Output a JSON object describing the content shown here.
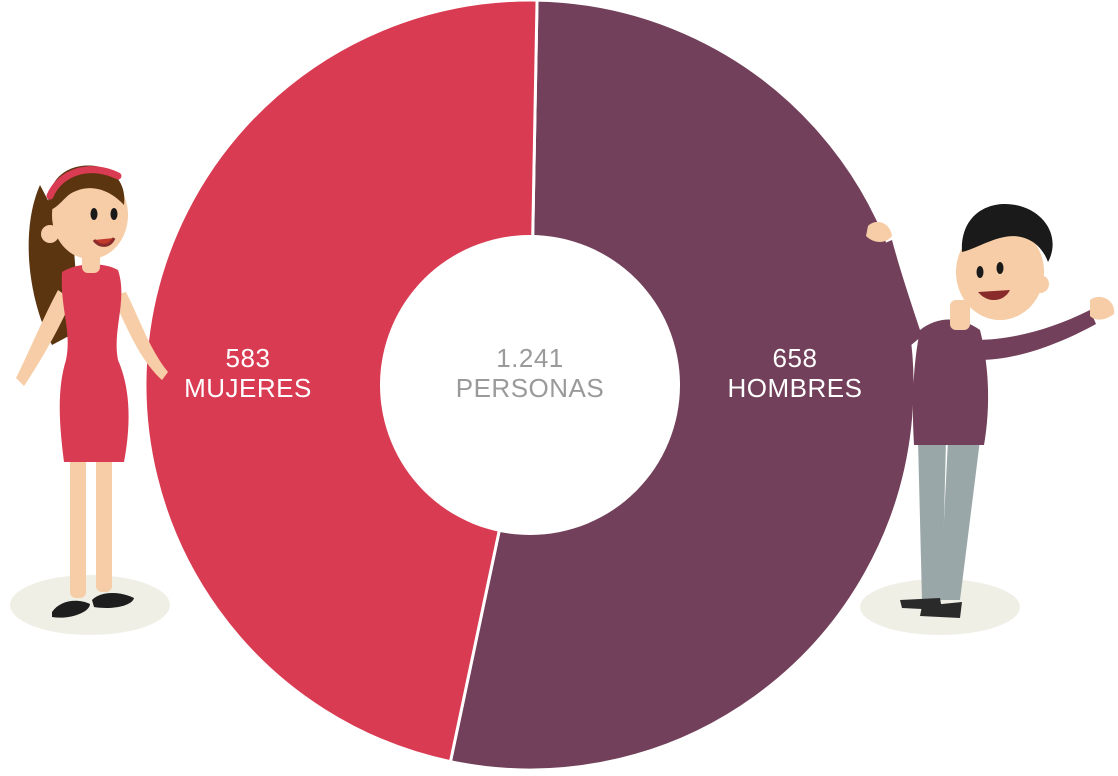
{
  "colors": {
    "women": "#D93B52",
    "men": "#72405A",
    "center": "#FFFFFF",
    "label_on_slice": "#FFFFFF",
    "label_center": "#9A9A9A",
    "woman_skin": "#F6CDA6",
    "woman_hair": "#5B3410",
    "woman_dress": "#D93B52",
    "woman_shoes": "#1E1E1E",
    "man_skin": "#F6CDA6",
    "man_hair": "#1A1A1A",
    "man_shirt": "#72405A",
    "man_pants": "#9AA7A8",
    "man_shoes": "#2A2A2A",
    "ground_shadow": "#F0EFE6"
  },
  "chart_data": {
    "type": "pie",
    "donut": true,
    "total_value_label": "1.241",
    "total_unit_label": "PERSONAS",
    "slices": [
      {
        "label": "MUJERES",
        "value": 583,
        "value_label": "583",
        "color": "#D93B52"
      },
      {
        "label": "HOMBRES",
        "value": 658,
        "value_label": "658",
        "color": "#72405A"
      }
    ],
    "legend": "none"
  },
  "illustrations": {
    "left": "woman-figure",
    "right": "man-figure"
  }
}
